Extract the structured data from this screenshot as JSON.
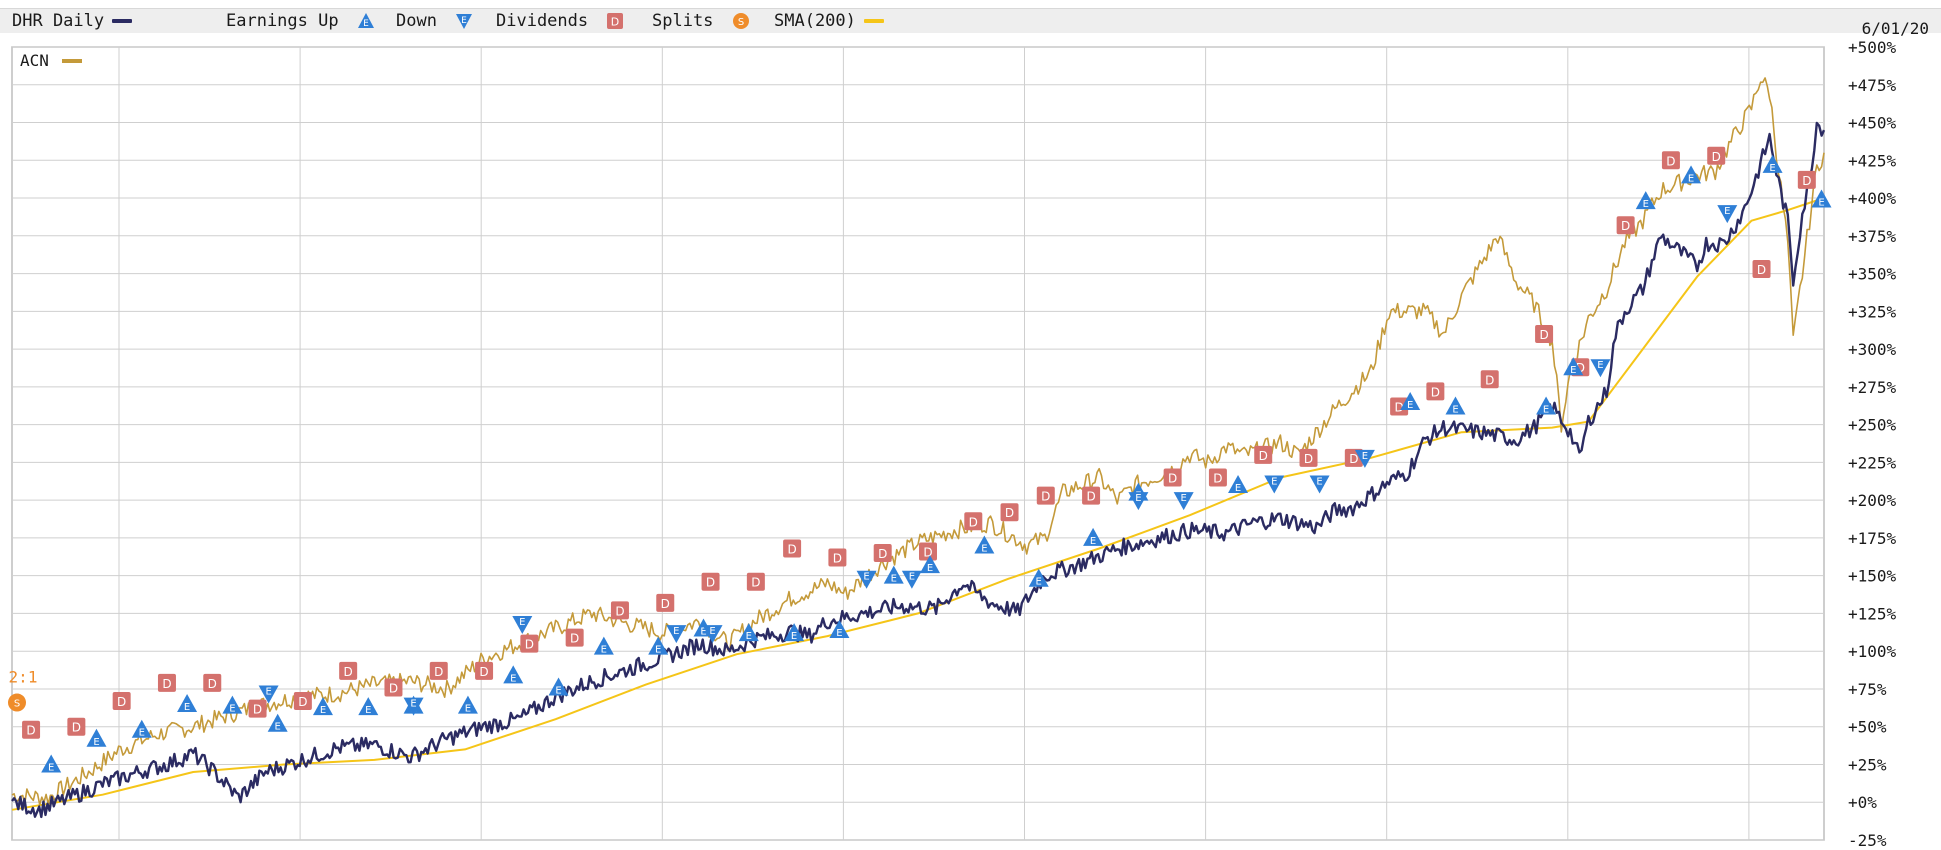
{
  "legend": {
    "symbol_label": "DHR Daily",
    "earnings_up_label": "Earnings Up",
    "down_label": "Down",
    "dividends_label": "Dividends",
    "splits_label": "Splits",
    "sma_label": "SMA(200)",
    "date": "6/01/20"
  },
  "colors": {
    "dhr": "#2b2b62",
    "acn": "#c49a3a",
    "sma": "#f5c518",
    "earnings": "#2f7fd6",
    "dividend": "#d4716d",
    "split": "#ef8c2a",
    "grid": "#cfcfcf"
  },
  "icons": {
    "earnings_up": "triangle-up-E-icon",
    "earnings_down": "triangle-down-E-icon",
    "dividend": "square-D-icon",
    "split": "circle-S-icon"
  },
  "chart_data": {
    "type": "line",
    "title": "DHR Daily",
    "y_axis": {
      "side": "right",
      "range": [
        -25,
        500
      ],
      "unit": "%",
      "tick_labels": [
        "+500%",
        "+475%",
        "+450%",
        "+425%",
        "+400%",
        "+375%",
        "+350%",
        "+325%",
        "+300%",
        "+275%",
        "+250%",
        "+225%",
        "+200%",
        "+175%",
        "+150%",
        "+125%",
        "+100%",
        "+75%",
        "+50%",
        "+25%",
        "+0%",
        "-25%"
      ]
    },
    "x_axis": {
      "vertical_gridlines": 10,
      "end_date_label": "6/01/20"
    },
    "grid": true,
    "legend_placement": "top",
    "inset_legend": {
      "label": "ACN",
      "placement": "top-left"
    },
    "series": [
      {
        "name": "DHR Daily",
        "style": "line",
        "color": "#2b2b62",
        "values": [
          [
            0,
            0
          ],
          [
            1.5,
            -5
          ],
          [
            3,
            2
          ],
          [
            5,
            12
          ],
          [
            7,
            20
          ],
          [
            8.5,
            25
          ],
          [
            10,
            32
          ],
          [
            11,
            22
          ],
          [
            12.5,
            3
          ],
          [
            14,
            20
          ],
          [
            16,
            28
          ],
          [
            18,
            36
          ],
          [
            20,
            38
          ],
          [
            22,
            30
          ],
          [
            24,
            42
          ],
          [
            26,
            50
          ],
          [
            28,
            55
          ],
          [
            30,
            70
          ],
          [
            32,
            80
          ],
          [
            34,
            88
          ],
          [
            36,
            96
          ],
          [
            38,
            105
          ],
          [
            39.5,
            100
          ],
          [
            41,
            108
          ],
          [
            43,
            113
          ],
          [
            44,
            110
          ],
          [
            45,
            120
          ],
          [
            47,
            125
          ],
          [
            49,
            130
          ],
          [
            51,
            128
          ],
          [
            52.5,
            145
          ],
          [
            54,
            132
          ],
          [
            55.5,
            126
          ],
          [
            57,
            150
          ],
          [
            59,
            158
          ],
          [
            61,
            168
          ],
          [
            63,
            174
          ],
          [
            65,
            180
          ],
          [
            67,
            178
          ],
          [
            68.5,
            185
          ],
          [
            70,
            188
          ],
          [
            72,
            182
          ],
          [
            73,
            193
          ],
          [
            74,
            195
          ],
          [
            76,
            212
          ],
          [
            77,
            218
          ],
          [
            78,
            240
          ],
          [
            79,
            248
          ],
          [
            81,
            245
          ],
          [
            83,
            240
          ],
          [
            84,
            248
          ],
          [
            85,
            262
          ],
          [
            86,
            245
          ],
          [
            86.5,
            228
          ],
          [
            87,
            252
          ],
          [
            88,
            272
          ],
          [
            88.5,
            310
          ],
          [
            89,
            325
          ],
          [
            90,
            340
          ],
          [
            91,
            375
          ],
          [
            92,
            365
          ],
          [
            93,
            355
          ],
          [
            93.5,
            370
          ],
          [
            94.5,
            370
          ],
          [
            95.5,
            390
          ],
          [
            96,
            405
          ],
          [
            97,
            440
          ],
          [
            97.5,
            410
          ],
          [
            98,
            385
          ],
          [
            98.3,
            345
          ],
          [
            98.8,
            390
          ],
          [
            99.2,
            410
          ],
          [
            99.6,
            450
          ],
          [
            100,
            445
          ]
        ]
      },
      {
        "name": "ACN",
        "style": "line",
        "color": "#c49a3a",
        "values": [
          [
            0,
            5
          ],
          [
            2,
            3
          ],
          [
            4,
            18
          ],
          [
            6,
            35
          ],
          [
            8,
            45
          ],
          [
            10,
            50
          ],
          [
            12,
            58
          ],
          [
            14,
            65
          ],
          [
            16,
            70
          ],
          [
            18,
            72
          ],
          [
            20,
            78
          ],
          [
            22,
            80
          ],
          [
            24,
            75
          ],
          [
            26,
            95
          ],
          [
            28,
            105
          ],
          [
            30,
            115
          ],
          [
            32,
            125
          ],
          [
            34,
            118
          ],
          [
            36,
            112
          ],
          [
            38,
            120
          ],
          [
            39.5,
            105
          ],
          [
            41,
            120
          ],
          [
            43,
            135
          ],
          [
            45,
            145
          ],
          [
            46,
            138
          ],
          [
            48,
            158
          ],
          [
            50,
            172
          ],
          [
            52,
            180
          ],
          [
            54,
            185
          ],
          [
            56,
            170
          ],
          [
            57,
            175
          ],
          [
            58,
            205
          ],
          [
            60,
            215
          ],
          [
            61,
            200
          ],
          [
            62,
            210
          ],
          [
            64,
            220
          ],
          [
            65,
            230
          ],
          [
            66,
            225
          ],
          [
            67,
            235
          ],
          [
            68,
            230
          ],
          [
            70,
            238
          ],
          [
            71,
            230
          ],
          [
            73,
            260
          ],
          [
            75,
            285
          ],
          [
            76,
            325
          ],
          [
            78,
            325
          ],
          [
            79,
            310
          ],
          [
            80,
            335
          ],
          [
            81,
            355
          ],
          [
            82,
            375
          ],
          [
            83,
            345
          ],
          [
            84,
            330
          ],
          [
            85,
            305
          ],
          [
            85.5,
            250
          ],
          [
            86,
            285
          ],
          [
            87,
            320
          ],
          [
            88,
            340
          ],
          [
            89,
            370
          ],
          [
            90,
            385
          ],
          [
            91,
            405
          ],
          [
            92,
            410
          ],
          [
            93,
            415
          ],
          [
            94,
            418
          ],
          [
            95,
            440
          ],
          [
            96,
            460
          ],
          [
            96.5,
            480
          ],
          [
            97,
            470
          ],
          [
            97.5,
            418
          ],
          [
            98,
            370
          ],
          [
            98.3,
            305
          ],
          [
            98.8,
            350
          ],
          [
            99.2,
            385
          ],
          [
            99.6,
            420
          ],
          [
            100,
            430
          ]
        ]
      },
      {
        "name": "SMA(200)",
        "style": "line",
        "color": "#f5c518",
        "values": [
          [
            0,
            -5
          ],
          [
            5,
            5
          ],
          [
            10,
            20
          ],
          [
            15,
            25
          ],
          [
            20,
            28
          ],
          [
            25,
            35
          ],
          [
            30,
            55
          ],
          [
            35,
            78
          ],
          [
            40,
            98
          ],
          [
            45,
            110
          ],
          [
            50,
            125
          ],
          [
            55,
            148
          ],
          [
            60,
            168
          ],
          [
            65,
            190
          ],
          [
            70,
            215
          ],
          [
            75,
            228
          ],
          [
            80,
            245
          ],
          [
            85,
            248
          ],
          [
            87,
            252
          ],
          [
            90,
            300
          ],
          [
            93,
            348
          ],
          [
            96,
            385
          ],
          [
            98,
            392
          ],
          [
            100,
            400
          ]
        ]
      }
    ],
    "markers": {
      "earnings_up": [
        [
          1.5,
          25
        ],
        [
          4,
          42
        ],
        [
          6.5,
          48
        ],
        [
          9,
          65
        ],
        [
          11.5,
          64
        ],
        [
          14,
          52
        ],
        [
          16.5,
          63
        ],
        [
          19,
          63
        ],
        [
          21.5,
          64
        ],
        [
          24.5,
          64
        ],
        [
          27,
          84
        ],
        [
          29.5,
          76
        ],
        [
          32,
          103
        ],
        [
          35,
          103
        ],
        [
          37.5,
          115
        ],
        [
          40,
          112
        ],
        [
          42.5,
          112
        ],
        [
          45,
          114
        ],
        [
          48,
          150
        ],
        [
          50,
          157
        ],
        [
          53,
          170
        ],
        [
          56,
          148
        ],
        [
          59,
          175
        ],
        [
          61.5,
          205
        ],
        [
          67,
          210
        ],
        [
          76.5,
          265
        ],
        [
          79,
          262
        ],
        [
          84,
          262
        ],
        [
          85.5,
          288
        ],
        [
          89.5,
          398
        ],
        [
          92,
          415
        ],
        [
          96.5,
          422
        ],
        [
          99.2,
          399
        ]
      ],
      "earnings_down": [
        [
          13.5,
          72
        ],
        [
          21.5,
          64
        ],
        [
          27.5,
          118
        ],
        [
          36,
          112
        ],
        [
          38,
          112
        ],
        [
          46.5,
          148
        ],
        [
          49,
          148
        ],
        [
          61.5,
          200
        ],
        [
          64,
          200
        ],
        [
          69,
          211
        ],
        [
          71.5,
          211
        ],
        [
          74,
          228
        ],
        [
          87,
          288
        ],
        [
          94,
          390
        ]
      ],
      "dividends": [
        [
          0.5,
          48
        ],
        [
          3,
          50
        ],
        [
          5.5,
          67
        ],
        [
          8,
          79
        ],
        [
          10.5,
          79
        ],
        [
          13,
          62
        ],
        [
          15.5,
          67
        ],
        [
          18,
          87
        ],
        [
          20.5,
          76
        ],
        [
          23,
          87
        ],
        [
          25.5,
          87
        ],
        [
          28,
          105
        ],
        [
          30.5,
          109
        ],
        [
          33,
          127
        ],
        [
          35.5,
          132
        ],
        [
          38,
          146
        ],
        [
          40.5,
          146
        ],
        [
          42.5,
          168
        ],
        [
          45,
          162
        ],
        [
          47.5,
          165
        ],
        [
          50,
          166
        ],
        [
          52.5,
          186
        ],
        [
          54.5,
          192
        ],
        [
          56.5,
          203
        ],
        [
          59,
          203
        ],
        [
          63.5,
          215
        ],
        [
          66,
          215
        ],
        [
          68.5,
          230
        ],
        [
          71,
          228
        ],
        [
          73.5,
          228
        ],
        [
          76,
          262
        ],
        [
          78,
          272
        ],
        [
          81,
          280
        ],
        [
          84,
          310
        ],
        [
          86,
          288
        ],
        [
          88.5,
          382
        ],
        [
          91,
          425
        ],
        [
          93.5,
          428
        ],
        [
          96,
          353
        ],
        [
          98.5,
          412
        ]
      ],
      "splits": [
        {
          "x": 0,
          "y": 66,
          "label": "2:1"
        }
      ]
    }
  }
}
